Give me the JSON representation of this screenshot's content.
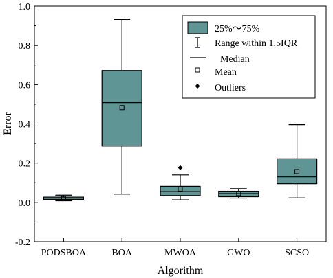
{
  "chart_data": {
    "type": "box",
    "title": "",
    "xlabel": "Algorithm",
    "ylabel": "Error",
    "ylim": [
      -0.2,
      1.0
    ],
    "yticks": [
      -0.2,
      0.0,
      0.2,
      0.4,
      0.6,
      0.8,
      1.0
    ],
    "ytick_labels": [
      "-0.2",
      "0.0",
      "0.2",
      "0.4",
      "0.6",
      "0.8",
      "1.0"
    ],
    "categories": [
      "PODSBOA",
      "BOA",
      "MWOA",
      "GWO",
      "SCSO"
    ],
    "box_color": "#5f9595",
    "legend_position": "top-right",
    "legend": {
      "box": "25%～75%",
      "whisker": "Range within 1.5IQR",
      "median": "Median",
      "mean": "Mean",
      "outliers": "Outliers"
    },
    "boxes": [
      {
        "name": "PODSBOA",
        "whisker_low": 0.008,
        "q1": 0.015,
        "median": 0.022,
        "q3": 0.027,
        "whisker_high": 0.037,
        "mean": 0.021,
        "outliers": []
      },
      {
        "name": "BOA",
        "whisker_low": 0.042,
        "q1": 0.287,
        "median": 0.508,
        "q3": 0.672,
        "whisker_high": 0.932,
        "mean": 0.483,
        "outliers": []
      },
      {
        "name": "MWOA",
        "whisker_low": 0.013,
        "q1": 0.035,
        "median": 0.055,
        "q3": 0.082,
        "whisker_high": 0.14,
        "mean": 0.068,
        "outliers": [
          0.177
        ]
      },
      {
        "name": "GWO",
        "whisker_low": 0.022,
        "q1": 0.029,
        "median": 0.045,
        "q3": 0.057,
        "whisker_high": 0.07,
        "mean": 0.045,
        "outliers": []
      },
      {
        "name": "SCSO",
        "whisker_low": 0.023,
        "q1": 0.095,
        "median": 0.13,
        "q3": 0.222,
        "whisker_high": 0.396,
        "mean": 0.157,
        "outliers": []
      }
    ]
  }
}
